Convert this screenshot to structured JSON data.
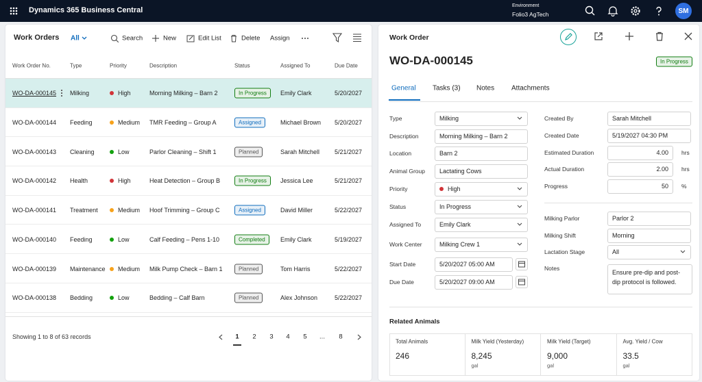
{
  "topbar": {
    "app_name": "Dynamics 365 Business Central",
    "environment_label": "Environment",
    "environment": "Folio3 AgTech",
    "avatar": "SM"
  },
  "list": {
    "title": "Work Orders",
    "view": "All",
    "actions": [
      "Search",
      "New",
      "Edit List",
      "Delete",
      "Assign"
    ],
    "columns": [
      "Work Order No.",
      "Type",
      "Priority",
      "Description",
      "Status",
      "Assigned To",
      "Due Date"
    ],
    "rows": [
      {
        "no": "WO-DA-000145",
        "type": "Milking",
        "priority": "High",
        "priority_color": "#d13438",
        "description": "Morning Milking – Barn 2",
        "status": "In Progress",
        "status_color": "#107c10",
        "assigned_to": "Emily Clark",
        "due_date": "5/20/2027",
        "selected": true
      },
      {
        "no": "WO-DA-000144",
        "type": "Feeding",
        "priority": "Medium",
        "priority_color": "#f7a21b",
        "description": "TMR Feeding – Group A",
        "status": "Assigned",
        "status_color": "#0f6cbd",
        "assigned_to": "Michael Brown",
        "due_date": "5/20/2027",
        "selected": false
      },
      {
        "no": "WO-DA-000143",
        "type": "Cleaning",
        "priority": "Low",
        "priority_color": "#13a10e",
        "description": "Parlor Cleaning – Shift 1",
        "status": "Planned",
        "status_color": "#555555",
        "assigned_to": "Sarah Mitchell",
        "due_date": "5/21/2027",
        "selected": false
      },
      {
        "no": "WO-DA-000142",
        "type": "Health",
        "priority": "High",
        "priority_color": "#d13438",
        "description": "Heat Detection – Group B",
        "status": "In Progress",
        "status_color": "#107c10",
        "assigned_to": "Jessica Lee",
        "due_date": "5/21/2027",
        "selected": false
      },
      {
        "no": "WO-DA-000141",
        "type": "Treatment",
        "priority": "Medium",
        "priority_color": "#f7a21b",
        "description": "Hoof Trimming – Group C",
        "status": "Assigned",
        "status_color": "#0f6cbd",
        "assigned_to": "David Miller",
        "due_date": "5/22/2027",
        "selected": false
      },
      {
        "no": "WO-DA-000140",
        "type": "Feeding",
        "priority": "Low",
        "priority_color": "#13a10e",
        "description": "Calf Feeding – Pens 1-10",
        "status": "Completed",
        "status_color": "#107c10",
        "assigned_to": "Emily Clark",
        "due_date": "5/19/2027",
        "selected": false
      },
      {
        "no": "WO-DA-000139",
        "type": "Maintenance",
        "priority": "Medium",
        "priority_color": "#f7a21b",
        "description": "Milk Pump Check – Barn 1",
        "status": "Planned",
        "status_color": "#555555",
        "assigned_to": "Tom Harris",
        "due_date": "5/22/2027",
        "selected": false
      },
      {
        "no": "WO-DA-000138",
        "type": "Bedding",
        "priority": "Low",
        "priority_color": "#13a10e",
        "description": "Bedding – Calf Barn",
        "status": "Planned",
        "status_color": "#555555",
        "assigned_to": "Alex Johnson",
        "due_date": "5/22/2027",
        "selected": false
      }
    ],
    "footer": "Showing 1 to 8 of 63 records",
    "pages": [
      "1",
      "2",
      "3",
      "4",
      "5",
      "...",
      "8"
    ],
    "current_page": "1"
  },
  "detail": {
    "title": "Work Order",
    "id": "WO-DA-000145",
    "status": "In Progress",
    "status_color": "#107c10",
    "tabs": [
      "General",
      "Tasks (3)",
      "Notes",
      "Attachments"
    ],
    "active_tab": "General",
    "left_fields": [
      {
        "label": "Type",
        "value": "Milking",
        "control": "select"
      },
      {
        "label": "Description",
        "value": "Morning Milking – Barn 2",
        "control": "text"
      },
      {
        "label": "Location",
        "value": "Barn 2",
        "control": "text"
      },
      {
        "label": "Animal Group",
        "value": "Lactating Cows",
        "control": "text"
      },
      {
        "label": "Priority",
        "value": "High",
        "control": "select",
        "dot_color": "#d13438"
      },
      {
        "label": "Status",
        "value": "In Progress",
        "control": "select"
      },
      {
        "label": "Assigned To",
        "value": "Emily Clark",
        "control": "select"
      },
      {
        "label": "Work Center",
        "value": "Milking Crew 1",
        "control": "select"
      },
      {
        "label": "Start Date",
        "value": "5/20/2027 05:00 AM",
        "control": "date"
      },
      {
        "label": "Due Date",
        "value": "5/20/2027 09:00 AM",
        "control": "date"
      }
    ],
    "right_fields": [
      {
        "label": "Created By",
        "value": "Sarah Mitchell",
        "control": "text"
      },
      {
        "label": "Created Date",
        "value": "5/19/2027 04:30 PM",
        "control": "text"
      },
      {
        "label": "Estimated Duration",
        "value": "4.00",
        "control": "number",
        "unit": "hrs"
      },
      {
        "label": "Actual Duration",
        "value": "2.00",
        "control": "number",
        "unit": "hrs"
      },
      {
        "label": "Progress",
        "value": "50",
        "control": "number",
        "unit": "%"
      },
      {
        "label": "Milking Parlor",
        "value": "Parlor 2",
        "control": "text"
      },
      {
        "label": "Milking Shift",
        "value": "Morning",
        "control": "text"
      },
      {
        "label": "Lactation Stage",
        "value": "All",
        "control": "select"
      },
      {
        "label": "Notes",
        "value": "Ensure pre-dip and post-dip protocol is followed.",
        "control": "textarea"
      }
    ],
    "related": {
      "title": "Related Animals",
      "cards": [
        {
          "label": "Total Animals",
          "value": "246"
        },
        {
          "label": "Milk Yield (Yesterday)",
          "value": "8,245",
          "unit": "gal"
        },
        {
          "label": "Milk Yield (Target)",
          "value": "9,000",
          "unit": "gal"
        },
        {
          "label": "Avg. Yield / Cow",
          "value": "33.5",
          "unit": "gal"
        }
      ]
    }
  }
}
